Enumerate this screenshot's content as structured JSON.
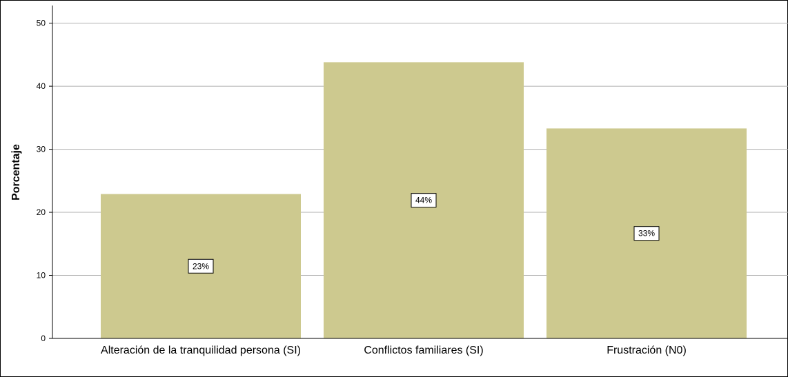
{
  "chart_data": {
    "type": "bar",
    "y_label": "Porcentaje",
    "categories": [
      "Alteración de la tranquilidad persona (SI)",
      "Conflictos familiares (SI)",
      "Frustración (N0)"
    ],
    "values": [
      22.9,
      43.8,
      33.3
    ],
    "value_labels": [
      "23%",
      "44%",
      "33%"
    ],
    "color": "#cdc98f",
    "ylim": [
      0,
      52.8
    ],
    "yticks": [
      0,
      10,
      20,
      30,
      40,
      50
    ],
    "grid": true
  }
}
